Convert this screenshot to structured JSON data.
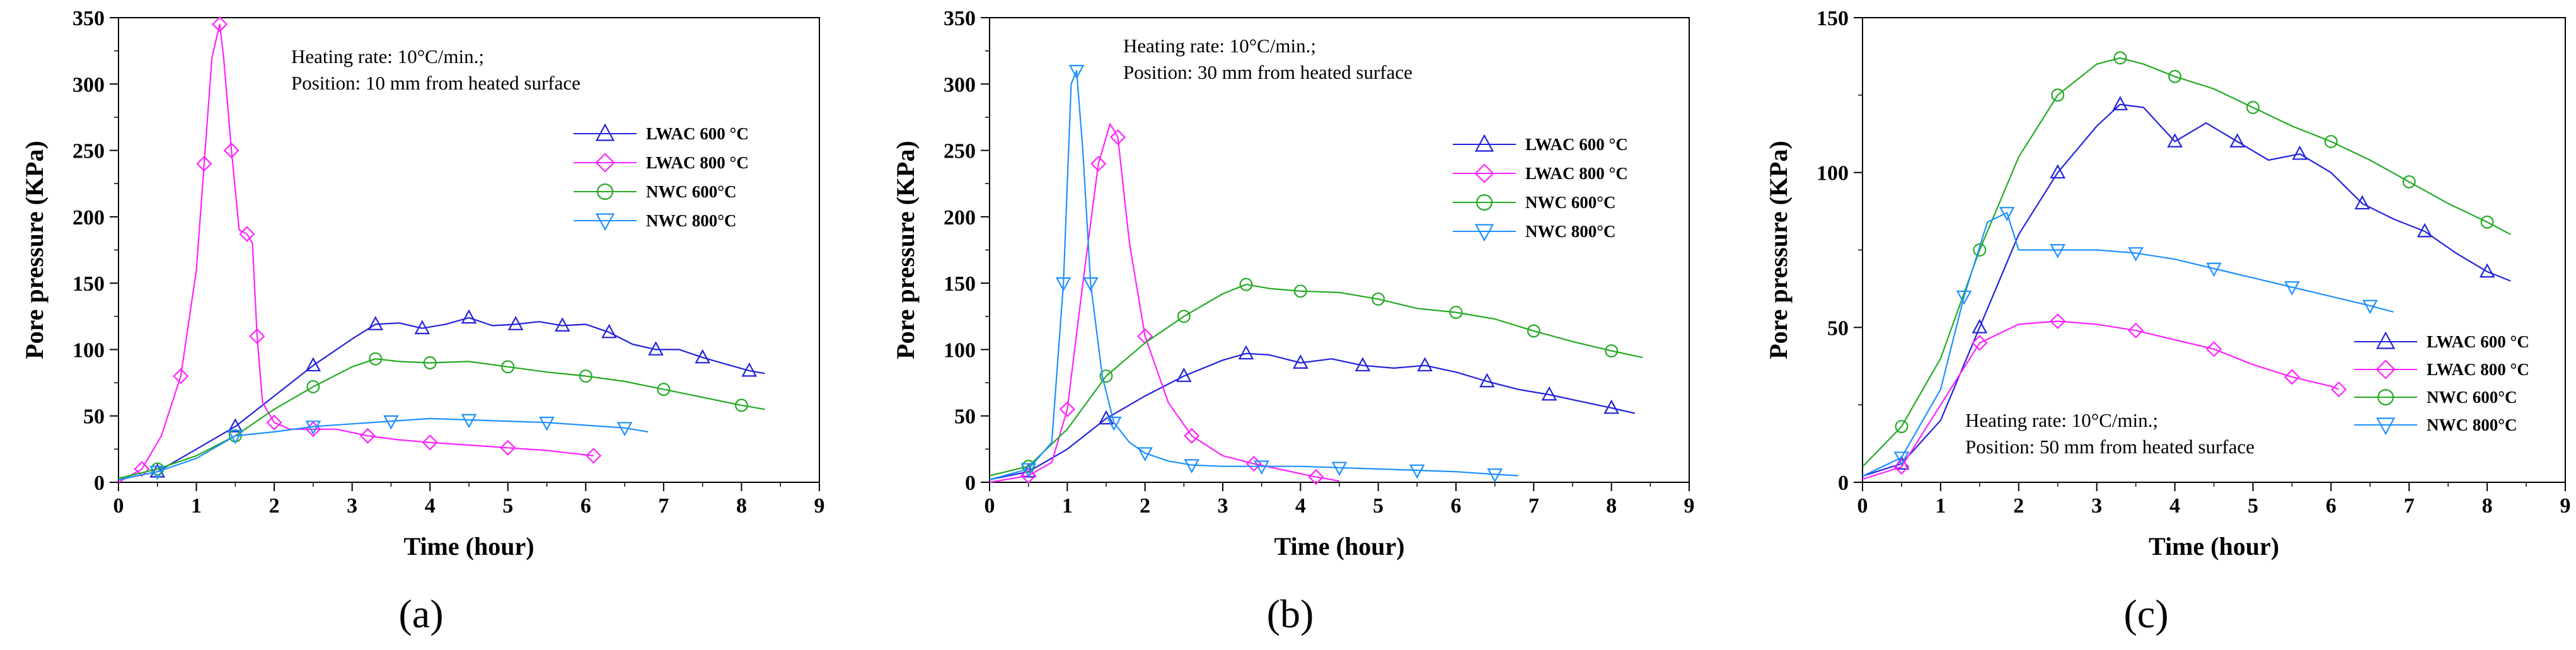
{
  "figure": {
    "colors": {
      "LWAC 600": "#2222dd",
      "LWAC 800": "#ff22ff",
      "NWC 600": "#22aa22",
      "NWC 800": "#1e90ff"
    }
  },
  "chart_data": [
    {
      "type": "line",
      "panel_label": "(a)",
      "xlabel": "Time (hour)",
      "ylabel": "Pore pressure (KPa)",
      "xlim": [
        0,
        9
      ],
      "ylim": [
        0,
        350
      ],
      "xticks": [
        0,
        1,
        2,
        3,
        4,
        5,
        6,
        7,
        8,
        9
      ],
      "yticks": [
        0,
        50,
        100,
        150,
        200,
        250,
        300,
        350
      ],
      "annotation": [
        "Heating rate: 10°C/min.;",
        "Position: 10 mm from heated surface"
      ],
      "legend_position": "top-right",
      "series": [
        {
          "name": "LWAC 600 °C",
          "color": "#2222dd",
          "marker": "triangle-up",
          "x": [
            0,
            0.5,
            1,
            1.5,
            2,
            2.5,
            3,
            3.3,
            3.6,
            3.9,
            4.2,
            4.5,
            4.8,
            5.1,
            5.4,
            5.7,
            6,
            6.3,
            6.6,
            6.9,
            7.2,
            7.5,
            7.8,
            8.1,
            8.3
          ],
          "y": [
            2,
            8,
            25,
            42,
            65,
            88,
            108,
            119,
            120,
            116,
            119,
            124,
            118,
            119,
            121,
            118,
            119,
            113,
            104,
            100,
            100,
            94,
            89,
            84,
            82
          ]
        },
        {
          "name": "LWAC 800 °C",
          "color": "#ff22ff",
          "marker": "diamond",
          "x": [
            0,
            0.3,
            0.55,
            0.8,
            1.0,
            1.1,
            1.2,
            1.3,
            1.35,
            1.45,
            1.55,
            1.65,
            1.72,
            1.78,
            1.85,
            2.0,
            2.2,
            2.5,
            2.8,
            3.2,
            3.6,
            4.0,
            4.5,
            5.0,
            5.5,
            6.1
          ],
          "y": [
            0,
            10,
            35,
            80,
            160,
            240,
            320,
            345,
            320,
            250,
            190,
            187,
            180,
            110,
            60,
            45,
            40,
            40,
            40,
            35,
            32,
            30,
            28,
            26,
            24,
            20
          ]
        },
        {
          "name": "NWC 600°C",
          "color": "#22aa22",
          "marker": "circle",
          "x": [
            0,
            0.5,
            1,
            1.5,
            2,
            2.5,
            3,
            3.3,
            3.6,
            4,
            4.5,
            5,
            5.5,
            6,
            6.5,
            7,
            7.5,
            8,
            8.3
          ],
          "y": [
            3,
            10,
            20,
            35,
            55,
            72,
            87,
            93,
            91,
            90,
            91,
            87,
            83,
            80,
            76,
            70,
            64,
            58,
            55
          ]
        },
        {
          "name": "NWC 800°C",
          "color": "#1e90ff",
          "marker": "triangle-down",
          "x": [
            0,
            0.5,
            1,
            1.5,
            2,
            2.5,
            3,
            3.5,
            4,
            4.5,
            5,
            5.5,
            6,
            6.5,
            6.8
          ],
          "y": [
            2,
            8,
            18,
            35,
            38,
            42,
            44,
            46,
            48,
            47,
            46,
            45,
            43,
            41,
            38
          ]
        }
      ]
    },
    {
      "type": "line",
      "panel_label": "(b)",
      "xlabel": "Time (hour)",
      "ylabel": "Pore pressure (KPa)",
      "xlim": [
        0,
        9
      ],
      "ylim": [
        0,
        350
      ],
      "xticks": [
        0,
        1,
        2,
        3,
        4,
        5,
        6,
        7,
        8,
        9
      ],
      "yticks": [
        0,
        50,
        100,
        150,
        200,
        250,
        300,
        350
      ],
      "annotation": [
        "Heating rate: 10°C/min.;",
        "Position: 30 mm from heated surface"
      ],
      "legend_position": "right",
      "series": [
        {
          "name": "LWAC 600 °C",
          "color": "#2222dd",
          "marker": "triangle-up",
          "x": [
            0,
            0.5,
            1,
            1.5,
            2,
            2.5,
            3,
            3.3,
            3.6,
            4,
            4.4,
            4.8,
            5.2,
            5.6,
            6,
            6.4,
            6.8,
            7.2,
            7.6,
            8,
            8.3
          ],
          "y": [
            2,
            8,
            25,
            48,
            65,
            80,
            92,
            97,
            96,
            90,
            93,
            88,
            86,
            88,
            83,
            76,
            70,
            66,
            61,
            56,
            52
          ]
        },
        {
          "name": "LWAC 800 °C",
          "color": "#ff22ff",
          "marker": "diamond",
          "x": [
            0,
            0.5,
            0.8,
            1.0,
            1.2,
            1.4,
            1.55,
            1.65,
            1.8,
            2.0,
            2.3,
            2.6,
            3.0,
            3.4,
            3.8,
            4.2,
            4.5
          ],
          "y": [
            0,
            5,
            15,
            55,
            150,
            240,
            270,
            260,
            180,
            110,
            60,
            35,
            20,
            14,
            9,
            4,
            1
          ]
        },
        {
          "name": "NWC 600°C",
          "color": "#22aa22",
          "marker": "circle",
          "x": [
            0,
            0.5,
            1,
            1.5,
            2,
            2.5,
            3,
            3.3,
            3.6,
            4,
            4.5,
            5,
            5.5,
            6,
            6.5,
            7,
            7.5,
            8,
            8.4
          ],
          "y": [
            5,
            12,
            40,
            80,
            105,
            125,
            142,
            149,
            146,
            144,
            143,
            138,
            131,
            128,
            123,
            114,
            106,
            99,
            94
          ]
        },
        {
          "name": "NWC 800°C",
          "color": "#1e90ff",
          "marker": "triangle-down",
          "x": [
            0,
            0.5,
            0.8,
            0.95,
            1.05,
            1.12,
            1.2,
            1.3,
            1.45,
            1.6,
            1.8,
            2.0,
            2.3,
            2.6,
            3.0,
            3.5,
            4.0,
            4.5,
            5.0,
            5.5,
            6.0,
            6.5,
            6.8
          ],
          "y": [
            2,
            10,
            30,
            150,
            300,
            310,
            250,
            150,
            80,
            45,
            30,
            22,
            16,
            13,
            12,
            12,
            12,
            11,
            10,
            9,
            8,
            6,
            5
          ]
        }
      ]
    },
    {
      "type": "line",
      "panel_label": "(c)",
      "xlabel": "Time (hour)",
      "ylabel": "Pore pressure (KPa)",
      "xlim": [
        0,
        9
      ],
      "ylim": [
        0,
        150
      ],
      "xticks": [
        0,
        1,
        2,
        3,
        4,
        5,
        6,
        7,
        8,
        9
      ],
      "yticks": [
        0,
        50,
        100,
        150
      ],
      "annotation": [
        "Heating rate: 10°C/min.;",
        "Position: 50 mm from heated surface"
      ],
      "legend_position": "lower-right",
      "series": [
        {
          "name": "LWAC 600 °C",
          "color": "#2222dd",
          "marker": "triangle-up",
          "x": [
            0,
            0.5,
            1,
            1.5,
            2,
            2.5,
            3,
            3.3,
            3.6,
            4,
            4.4,
            4.8,
            5.2,
            5.6,
            6,
            6.4,
            6.8,
            7.2,
            7.6,
            8,
            8.3
          ],
          "y": [
            2,
            6,
            20,
            50,
            80,
            100,
            115,
            122,
            121,
            110,
            116,
            110,
            104,
            106,
            100,
            90,
            85,
            81,
            74,
            68,
            65
          ]
        },
        {
          "name": "LWAC 800 °C",
          "color": "#ff22ff",
          "marker": "diamond",
          "x": [
            0,
            0.5,
            1,
            1.5,
            2,
            2.5,
            3,
            3.5,
            4,
            4.5,
            5,
            5.5,
            6,
            6.1
          ],
          "y": [
            1,
            5,
            25,
            45,
            51,
            52,
            51,
            49,
            46,
            43,
            38,
            34,
            31,
            30
          ]
        },
        {
          "name": "NWC 600°C",
          "color": "#22aa22",
          "marker": "circle",
          "x": [
            0,
            0.5,
            1,
            1.5,
            2,
            2.5,
            3,
            3.3,
            3.6,
            4,
            4.5,
            5,
            5.5,
            6,
            6.5,
            7,
            7.5,
            8,
            8.3
          ],
          "y": [
            5,
            18,
            40,
            75,
            105,
            125,
            135,
            137,
            135,
            131,
            127,
            121,
            115,
            110,
            104,
            97,
            90,
            84,
            80
          ]
        },
        {
          "name": "NWC 800°C",
          "color": "#1e90ff",
          "marker": "triangle-down",
          "x": [
            0,
            0.5,
            1,
            1.3,
            1.6,
            1.85,
            2.0,
            2.5,
            3,
            3.5,
            4,
            4.5,
            5,
            5.5,
            6,
            6.5,
            6.8
          ],
          "y": [
            2,
            8,
            30,
            60,
            84,
            87,
            75,
            75,
            75,
            74,
            72,
            69,
            66,
            63,
            60,
            57,
            55
          ]
        }
      ]
    }
  ]
}
